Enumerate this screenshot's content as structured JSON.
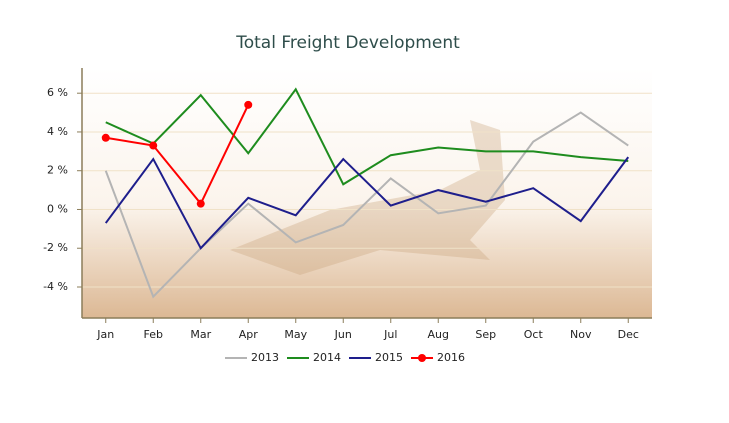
{
  "chart_data": {
    "type": "line",
    "title": "Total Freight Development",
    "categories": [
      "Jan",
      "Feb",
      "Mar",
      "Apr",
      "May",
      "Jun",
      "Jul",
      "Aug",
      "Sep",
      "Oct",
      "Nov",
      "Dec"
    ],
    "series": [
      {
        "name": "2013",
        "color": "#b4b4b4",
        "markers": false,
        "values": [
          2.0,
          -4.5,
          -2.0,
          0.3,
          -1.7,
          -0.8,
          1.6,
          -0.2,
          0.2,
          3.5,
          5.0,
          3.3
        ]
      },
      {
        "name": "2014",
        "color": "#1e8c1e",
        "markers": false,
        "values": [
          4.5,
          3.4,
          5.9,
          2.9,
          6.2,
          1.3,
          2.8,
          3.2,
          3.0,
          3.0,
          2.7,
          2.5
        ]
      },
      {
        "name": "2015",
        "color": "#1e1e8c",
        "markers": false,
        "values": [
          -0.7,
          2.6,
          -2.0,
          0.6,
          -0.3,
          2.6,
          0.2,
          1.0,
          0.4,
          1.1,
          -0.6,
          2.7
        ]
      },
      {
        "name": "2016",
        "color": "#ff0000",
        "markers": true,
        "values": [
          3.7,
          3.3,
          0.3,
          5.4,
          null,
          null,
          null,
          null,
          null,
          null,
          null,
          null
        ]
      }
    ],
    "ylim": [
      -5.6,
      7.3
    ],
    "yticks": [
      {
        "value": -4,
        "label": "-4 %"
      },
      {
        "value": -2,
        "label": "-2 %"
      },
      {
        "value": 0,
        "label": "0 %"
      },
      {
        "value": 2,
        "label": "2 %"
      },
      {
        "value": 4,
        "label": "4 %"
      },
      {
        "value": 6,
        "label": "6 %"
      }
    ],
    "grid": true
  }
}
